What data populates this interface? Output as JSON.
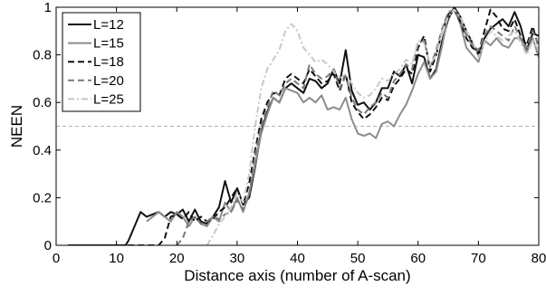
{
  "chart_data": {
    "type": "line",
    "xlabel": "Distance axis (number of A-scan)",
    "ylabel": "NEEN",
    "xlim": [
      0,
      80
    ],
    "ylim": [
      0,
      1
    ],
    "xticks": [
      "0",
      "10",
      "20",
      "30",
      "40",
      "50",
      "60",
      "70",
      "80"
    ],
    "yticks": [
      "0",
      "0.2",
      "0.4",
      "0.6",
      "0.8",
      "1"
    ],
    "grid": false,
    "legend_position": "top-left",
    "reference_line": {
      "y": 0.5,
      "style": "dashed",
      "color": "#b3b3b3"
    },
    "series": [
      {
        "name": "L=12",
        "color": "#111111",
        "dash": "solid",
        "points": [
          [
            2,
            0
          ],
          [
            11.5,
            0
          ],
          [
            12,
            0.02
          ],
          [
            13,
            0.08
          ],
          [
            14,
            0.14
          ],
          [
            15,
            0.12
          ],
          [
            16,
            0.13
          ],
          [
            17,
            0.14
          ],
          [
            18,
            0.12
          ],
          [
            19,
            0.14
          ],
          [
            20,
            0.13
          ],
          [
            21,
            0.15
          ],
          [
            22,
            0.1
          ],
          [
            23,
            0.15
          ],
          [
            24,
            0.1
          ],
          [
            25,
            0.09
          ],
          [
            26,
            0.12
          ],
          [
            27,
            0.16
          ],
          [
            28,
            0.27
          ],
          [
            29,
            0.18
          ],
          [
            30,
            0.24
          ],
          [
            31,
            0.17
          ],
          [
            32,
            0.2
          ],
          [
            33,
            0.33
          ],
          [
            34,
            0.48
          ],
          [
            35,
            0.56
          ],
          [
            36,
            0.62
          ],
          [
            37,
            0.6
          ],
          [
            38,
            0.66
          ],
          [
            39,
            0.68
          ],
          [
            40,
            0.66
          ],
          [
            41,
            0.64
          ],
          [
            42,
            0.7
          ],
          [
            43,
            0.69
          ],
          [
            44,
            0.66
          ],
          [
            45,
            0.68
          ],
          [
            46,
            0.74
          ],
          [
            47,
            0.68
          ],
          [
            48,
            0.82
          ],
          [
            49,
            0.65
          ],
          [
            50,
            0.59
          ],
          [
            51,
            0.6
          ],
          [
            52,
            0.57
          ],
          [
            53,
            0.6
          ],
          [
            54,
            0.66
          ],
          [
            55,
            0.66
          ],
          [
            56,
            0.73
          ],
          [
            57,
            0.71
          ],
          [
            58,
            0.76
          ],
          [
            59,
            0.68
          ],
          [
            60,
            0.8
          ],
          [
            61,
            0.79
          ],
          [
            62,
            0.7
          ],
          [
            63,
            0.74
          ],
          [
            64,
            0.86
          ],
          [
            65,
            0.95
          ],
          [
            66,
            1.0
          ],
          [
            67,
            0.96
          ],
          [
            68,
            0.9
          ],
          [
            69,
            0.85
          ],
          [
            70,
            0.8
          ],
          [
            71,
            0.87
          ],
          [
            72,
            0.91
          ],
          [
            73,
            0.93
          ],
          [
            74,
            0.95
          ],
          [
            75,
            0.92
          ],
          [
            76,
            0.98
          ],
          [
            77,
            0.92
          ],
          [
            78,
            0.82
          ],
          [
            79,
            0.89
          ],
          [
            80,
            0.88
          ]
        ]
      },
      {
        "name": "L=15",
        "color": "#8c8c8c",
        "dash": "solid",
        "points": [
          [
            15,
            0.1
          ],
          [
            16,
            0.12
          ],
          [
            17,
            0.14
          ],
          [
            18,
            0.12
          ],
          [
            19,
            0.1
          ],
          [
            20,
            0.14
          ],
          [
            21,
            0.12
          ],
          [
            22,
            0.08
          ],
          [
            23,
            0.12
          ],
          [
            24,
            0.09
          ],
          [
            25,
            0.08
          ],
          [
            26,
            0.12
          ],
          [
            27,
            0.1
          ],
          [
            28,
            0.18
          ],
          [
            29,
            0.14
          ],
          [
            30,
            0.2
          ],
          [
            31,
            0.14
          ],
          [
            32,
            0.22
          ],
          [
            33,
            0.34
          ],
          [
            34,
            0.47
          ],
          [
            35,
            0.55
          ],
          [
            36,
            0.62
          ],
          [
            37,
            0.6
          ],
          [
            38,
            0.66
          ],
          [
            39,
            0.65
          ],
          [
            40,
            0.64
          ],
          [
            41,
            0.6
          ],
          [
            42,
            0.62
          ],
          [
            43,
            0.6
          ],
          [
            44,
            0.63
          ],
          [
            45,
            0.57
          ],
          [
            46,
            0.58
          ],
          [
            47,
            0.57
          ],
          [
            48,
            0.62
          ],
          [
            49,
            0.53
          ],
          [
            50,
            0.47
          ],
          [
            51,
            0.46
          ],
          [
            52,
            0.47
          ],
          [
            53,
            0.45
          ],
          [
            54,
            0.51
          ],
          [
            55,
            0.52
          ],
          [
            56,
            0.5
          ],
          [
            57,
            0.55
          ],
          [
            58,
            0.59
          ],
          [
            59,
            0.65
          ],
          [
            60,
            0.72
          ],
          [
            61,
            0.77
          ],
          [
            62,
            0.7
          ],
          [
            63,
            0.73
          ],
          [
            64,
            0.84
          ],
          [
            65,
            0.97
          ],
          [
            66,
            0.99
          ],
          [
            67,
            0.93
          ],
          [
            68,
            0.83
          ],
          [
            69,
            0.8
          ],
          [
            70,
            0.77
          ],
          [
            71,
            0.86
          ],
          [
            72,
            0.84
          ],
          [
            73,
            0.87
          ],
          [
            74,
            0.84
          ],
          [
            75,
            0.83
          ],
          [
            76,
            0.87
          ],
          [
            77,
            0.87
          ],
          [
            78,
            0.81
          ],
          [
            79,
            0.87
          ],
          [
            80,
            0.79
          ]
        ]
      },
      {
        "name": "L=18",
        "color": "#111111",
        "dash": "dashed",
        "points": [
          [
            2,
            0
          ],
          [
            17,
            0
          ],
          [
            18,
            0.03
          ],
          [
            19,
            0.12
          ],
          [
            20,
            0.13
          ],
          [
            21,
            0.11
          ],
          [
            22,
            0.14
          ],
          [
            23,
            0.1
          ],
          [
            24,
            0.12
          ],
          [
            25,
            0.1
          ],
          [
            26,
            0.11
          ],
          [
            27,
            0.14
          ],
          [
            28,
            0.16
          ],
          [
            29,
            0.2
          ],
          [
            30,
            0.24
          ],
          [
            31,
            0.17
          ],
          [
            32,
            0.26
          ],
          [
            33,
            0.4
          ],
          [
            34,
            0.53
          ],
          [
            35,
            0.6
          ],
          [
            36,
            0.64
          ],
          [
            37,
            0.63
          ],
          [
            38,
            0.7
          ],
          [
            39,
            0.72
          ],
          [
            40,
            0.7
          ],
          [
            41,
            0.68
          ],
          [
            42,
            0.74
          ],
          [
            43,
            0.71
          ],
          [
            44,
            0.68
          ],
          [
            45,
            0.69
          ],
          [
            46,
            0.72
          ],
          [
            47,
            0.65
          ],
          [
            48,
            0.72
          ],
          [
            49,
            0.6
          ],
          [
            50,
            0.56
          ],
          [
            51,
            0.53
          ],
          [
            52,
            0.55
          ],
          [
            53,
            0.58
          ],
          [
            54,
            0.62
          ],
          [
            55,
            0.61
          ],
          [
            56,
            0.67
          ],
          [
            57,
            0.7
          ],
          [
            58,
            0.74
          ],
          [
            59,
            0.72
          ],
          [
            60,
            0.83
          ],
          [
            61,
            0.88
          ],
          [
            62,
            0.73
          ],
          [
            63,
            0.8
          ],
          [
            64,
            0.9
          ],
          [
            65,
            0.97
          ],
          [
            66,
            0.99
          ],
          [
            67,
            0.94
          ],
          [
            68,
            0.87
          ],
          [
            69,
            0.83
          ],
          [
            70,
            0.81
          ],
          [
            71,
            0.9
          ],
          [
            72,
            0.99
          ],
          [
            73,
            0.96
          ],
          [
            74,
            0.91
          ],
          [
            75,
            0.9
          ],
          [
            76,
            0.95
          ],
          [
            77,
            0.88
          ],
          [
            78,
            0.84
          ],
          [
            79,
            0.92
          ],
          [
            80,
            0.83
          ]
        ]
      },
      {
        "name": "L=20",
        "color": "#7a7a7a",
        "dash": "dashed",
        "points": [
          [
            20,
            0
          ],
          [
            21,
            0.03
          ],
          [
            22,
            0.1
          ],
          [
            23,
            0.12
          ],
          [
            24,
            0.09
          ],
          [
            25,
            0.1
          ],
          [
            26,
            0.12
          ],
          [
            27,
            0.11
          ],
          [
            28,
            0.13
          ],
          [
            29,
            0.14
          ],
          [
            30,
            0.19
          ],
          [
            31,
            0.15
          ],
          [
            32,
            0.21
          ],
          [
            33,
            0.38
          ],
          [
            34,
            0.5
          ],
          [
            35,
            0.58
          ],
          [
            36,
            0.65
          ],
          [
            37,
            0.63
          ],
          [
            38,
            0.68
          ],
          [
            39,
            0.7
          ],
          [
            40,
            0.68
          ],
          [
            41,
            0.66
          ],
          [
            42,
            0.76
          ],
          [
            43,
            0.72
          ],
          [
            44,
            0.7
          ],
          [
            45,
            0.71
          ],
          [
            46,
            0.74
          ],
          [
            47,
            0.66
          ],
          [
            48,
            0.71
          ],
          [
            49,
            0.62
          ],
          [
            50,
            0.57
          ],
          [
            51,
            0.55
          ],
          [
            52,
            0.58
          ],
          [
            53,
            0.6
          ],
          [
            54,
            0.64
          ],
          [
            55,
            0.62
          ],
          [
            56,
            0.69
          ],
          [
            57,
            0.72
          ],
          [
            58,
            0.76
          ],
          [
            59,
            0.74
          ],
          [
            60,
            0.85
          ],
          [
            61,
            0.86
          ],
          [
            62,
            0.75
          ],
          [
            63,
            0.82
          ],
          [
            64,
            0.91
          ],
          [
            65,
            0.98
          ],
          [
            66,
            0.99
          ],
          [
            67,
            0.95
          ],
          [
            68,
            0.88
          ],
          [
            69,
            0.84
          ],
          [
            70,
            0.82
          ],
          [
            71,
            0.88
          ],
          [
            72,
            0.92
          ],
          [
            73,
            0.9
          ],
          [
            74,
            0.88
          ],
          [
            75,
            0.86
          ],
          [
            76,
            0.92
          ],
          [
            77,
            0.87
          ],
          [
            78,
            0.83
          ],
          [
            79,
            0.9
          ],
          [
            80,
            0.84
          ]
        ]
      },
      {
        "name": "L=25",
        "color": "#c8c8c8",
        "dash": "dash-dot",
        "points": [
          [
            25,
            0
          ],
          [
            26,
            0.04
          ],
          [
            27,
            0.09
          ],
          [
            28,
            0.12
          ],
          [
            29,
            0.16
          ],
          [
            30,
            0.22
          ],
          [
            31,
            0.18
          ],
          [
            32,
            0.3
          ],
          [
            33,
            0.5
          ],
          [
            34,
            0.66
          ],
          [
            35,
            0.74
          ],
          [
            36,
            0.78
          ],
          [
            37,
            0.82
          ],
          [
            38,
            0.9
          ],
          [
            39,
            0.93
          ],
          [
            40,
            0.9
          ],
          [
            41,
            0.83
          ],
          [
            42,
            0.8
          ],
          [
            43,
            0.77
          ],
          [
            44,
            0.78
          ],
          [
            45,
            0.76
          ],
          [
            46,
            0.73
          ],
          [
            47,
            0.7
          ],
          [
            48,
            0.72
          ],
          [
            49,
            0.68
          ],
          [
            50,
            0.64
          ],
          [
            51,
            0.62
          ],
          [
            52,
            0.63
          ],
          [
            53,
            0.66
          ],
          [
            54,
            0.7
          ],
          [
            55,
            0.69
          ],
          [
            56,
            0.72
          ],
          [
            57,
            0.74
          ],
          [
            58,
            0.78
          ],
          [
            59,
            0.76
          ],
          [
            60,
            0.86
          ],
          [
            61,
            0.85
          ],
          [
            62,
            0.76
          ],
          [
            63,
            0.8
          ],
          [
            64,
            0.9
          ],
          [
            65,
            0.96
          ],
          [
            66,
            0.99
          ],
          [
            67,
            0.96
          ],
          [
            68,
            0.9
          ],
          [
            69,
            0.86
          ],
          [
            70,
            0.79
          ],
          [
            71,
            0.85
          ],
          [
            72,
            0.9
          ],
          [
            73,
            0.88
          ],
          [
            74,
            0.86
          ],
          [
            75,
            0.88
          ],
          [
            76,
            0.9
          ],
          [
            77,
            0.85
          ],
          [
            78,
            0.8
          ],
          [
            79,
            0.86
          ],
          [
            80,
            0.82
          ]
        ]
      }
    ]
  }
}
